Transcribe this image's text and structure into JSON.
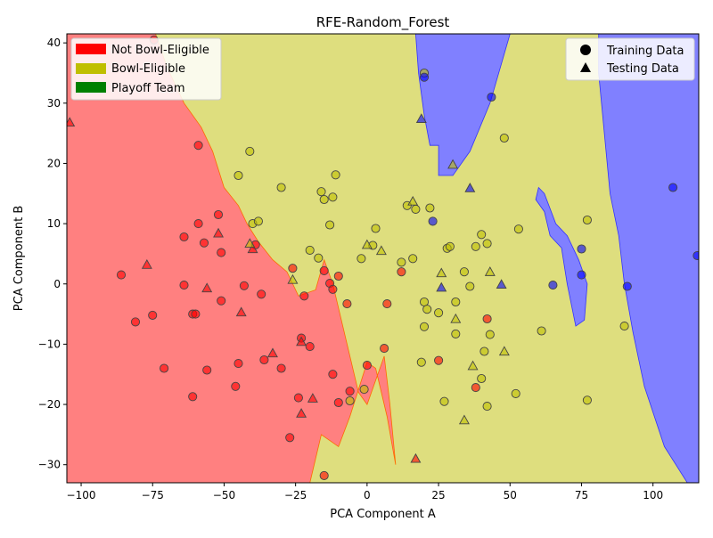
{
  "chart_data": {
    "type": "scatter",
    "title": "RFE-Random_Forest",
    "xlabel": "PCA Component A",
    "ylabel": "PCA Component B",
    "xlim": [
      -105,
      116
    ],
    "ylim": [
      -33,
      41.5
    ],
    "xticks": [
      -100,
      -75,
      -50,
      -25,
      0,
      25,
      50,
      75,
      100
    ],
    "xtick_labels": [
      "−100",
      "−75",
      "−50",
      "−25",
      "0",
      "25",
      "50",
      "75",
      "100"
    ],
    "yticks": [
      -30,
      -20,
      -10,
      0,
      10,
      20,
      30,
      40
    ],
    "ytick_labels": [
      "−30",
      "−20",
      "−10",
      "0",
      "10",
      "20",
      "30",
      "40"
    ],
    "grid": false,
    "class_legend": {
      "placement": "top-left",
      "entries": [
        {
          "label": "Not Bowl-Eligible",
          "color": "#ff0000"
        },
        {
          "label": "Bowl-Eligible",
          "color": "#bfbf00"
        },
        {
          "label": "Playoff Team",
          "color": "#008000"
        }
      ]
    },
    "marker_legend": {
      "placement": "top-right",
      "entries": [
        {
          "label": "Training Data",
          "marker": "circle"
        },
        {
          "label": "Testing Data",
          "marker": "triangle"
        }
      ]
    },
    "region_colors": {
      "red": "#ff8080",
      "yellow": "#dede7e",
      "blue": "#8080ff"
    },
    "point_colors": {
      "red": "#ff0000",
      "yellow": "#bfbf00",
      "blue": "#0000ff"
    },
    "regions": {
      "red": [
        [
          -105,
          41.5
        ],
        [
          -74,
          41.5
        ],
        [
          -70,
          36
        ],
        [
          -64,
          30
        ],
        [
          -58,
          26
        ],
        [
          -54,
          22
        ],
        [
          -50,
          16
        ],
        [
          -45,
          13
        ],
        [
          -42,
          10
        ],
        [
          -38,
          7
        ],
        [
          -33,
          4
        ],
        [
          -28,
          2
        ],
        [
          -24,
          -2
        ],
        [
          -18,
          -1
        ],
        [
          -15,
          4
        ],
        [
          -12,
          0
        ],
        [
          -10,
          -4
        ],
        [
          -6,
          -12
        ],
        [
          -3,
          -18
        ],
        [
          0,
          -20
        ],
        [
          3,
          -16
        ],
        [
          6,
          -12
        ],
        [
          8,
          -20
        ],
        [
          10,
          -30
        ],
        [
          7,
          -22
        ],
        [
          3,
          -14
        ],
        [
          0,
          -13
        ],
        [
          -6,
          -22
        ],
        [
          -10,
          -27
        ],
        [
          -16,
          -25
        ],
        [
          -20,
          -33
        ],
        [
          -105,
          -33
        ]
      ],
      "blue": [
        [
          [
            17,
            41.5
          ],
          [
            50,
            41.5
          ],
          [
            43,
            30
          ],
          [
            36,
            22
          ],
          [
            30,
            18
          ],
          [
            25,
            18
          ],
          [
            25,
            23
          ],
          [
            22,
            23
          ],
          [
            20,
            28
          ],
          [
            18,
            35
          ]
        ],
        [
          [
            59,
            14
          ],
          [
            62,
            12
          ],
          [
            64,
            8
          ],
          [
            68,
            6
          ],
          [
            70,
            0
          ],
          [
            73,
            -7
          ],
          [
            76,
            -6
          ],
          [
            77,
            0
          ],
          [
            74,
            4
          ],
          [
            70,
            8
          ],
          [
            66,
            10
          ],
          [
            62,
            15
          ],
          [
            60,
            16
          ]
        ],
        [
          [
            81,
            41.5
          ],
          [
            116,
            41.5
          ],
          [
            116,
            -33
          ],
          [
            112,
            -33
          ],
          [
            104,
            -27
          ],
          [
            97,
            -17
          ],
          [
            93,
            -8
          ],
          [
            90,
            0
          ],
          [
            88,
            8
          ],
          [
            85,
            15
          ],
          [
            83,
            25
          ],
          [
            81,
            35
          ]
        ]
      ]
    },
    "training": [
      {
        "x": -74.5,
        "y": 40.5,
        "c": "red"
      },
      {
        "x": -59,
        "y": 23,
        "c": "red"
      },
      {
        "x": -59,
        "y": 10,
        "c": "red"
      },
      {
        "x": -57,
        "y": 6.8,
        "c": "red"
      },
      {
        "x": -64,
        "y": 7.8,
        "c": "red"
      },
      {
        "x": -52,
        "y": 11.5,
        "c": "red"
      },
      {
        "x": -51,
        "y": 5.2,
        "c": "red"
      },
      {
        "x": -86,
        "y": 1.5,
        "c": "red"
      },
      {
        "x": -64,
        "y": -0.2,
        "c": "red"
      },
      {
        "x": -61,
        "y": -5,
        "c": "red"
      },
      {
        "x": -60,
        "y": -5,
        "c": "red"
      },
      {
        "x": -51,
        "y": -2.8,
        "c": "red"
      },
      {
        "x": -43,
        "y": -0.3,
        "c": "red"
      },
      {
        "x": -75,
        "y": -5.2,
        "c": "red"
      },
      {
        "x": -81,
        "y": -6.3,
        "c": "red"
      },
      {
        "x": -71,
        "y": -14,
        "c": "red"
      },
      {
        "x": -56,
        "y": -14.3,
        "c": "red"
      },
      {
        "x": -61,
        "y": -18.7,
        "c": "red"
      },
      {
        "x": -45,
        "y": -13.2,
        "c": "red"
      },
      {
        "x": -46,
        "y": -17,
        "c": "red"
      },
      {
        "x": -36,
        "y": -12.6,
        "c": "red"
      },
      {
        "x": -30,
        "y": -14,
        "c": "red"
      },
      {
        "x": -24,
        "y": -18.9,
        "c": "red"
      },
      {
        "x": -22,
        "y": -2,
        "c": "red"
      },
      {
        "x": -23,
        "y": -9,
        "c": "red"
      },
      {
        "x": -20,
        "y": -10.4,
        "c": "red"
      },
      {
        "x": -15,
        "y": 2.2,
        "c": "red"
      },
      {
        "x": -13,
        "y": 0.1,
        "c": "red"
      },
      {
        "x": -12,
        "y": -0.9,
        "c": "red"
      },
      {
        "x": -12,
        "y": -15,
        "c": "red"
      },
      {
        "x": -10,
        "y": -19.7,
        "c": "red"
      },
      {
        "x": -10,
        "y": 1.3,
        "c": "red"
      },
      {
        "x": -7,
        "y": -3.3,
        "c": "red"
      },
      {
        "x": -6,
        "y": -17.8,
        "c": "red"
      },
      {
        "x": 0,
        "y": -13.5,
        "c": "red"
      },
      {
        "x": 6,
        "y": -10.7,
        "c": "red"
      },
      {
        "x": 7,
        "y": -3.3,
        "c": "red"
      },
      {
        "x": 12,
        "y": 2,
        "c": "red"
      },
      {
        "x": -15,
        "y": -31.8,
        "c": "red"
      },
      {
        "x": -27,
        "y": -25.5,
        "c": "red"
      },
      {
        "x": -37,
        "y": -1.7,
        "c": "red"
      },
      {
        "x": -39,
        "y": 6.5,
        "c": "red"
      },
      {
        "x": -26,
        "y": 2.6,
        "c": "red"
      },
      {
        "x": 25,
        "y": -12.7,
        "c": "red"
      },
      {
        "x": 38,
        "y": -17.2,
        "c": "red"
      },
      {
        "x": 42,
        "y": -5.8,
        "c": "red"
      },
      {
        "x": -45,
        "y": 18,
        "c": "yellow"
      },
      {
        "x": -41,
        "y": 22,
        "c": "yellow"
      },
      {
        "x": -40,
        "y": 10,
        "c": "yellow"
      },
      {
        "x": -38,
        "y": 10.4,
        "c": "yellow"
      },
      {
        "x": -30,
        "y": 16,
        "c": "yellow"
      },
      {
        "x": -16,
        "y": 15.3,
        "c": "yellow"
      },
      {
        "x": -15,
        "y": 14,
        "c": "yellow"
      },
      {
        "x": -12,
        "y": 14.4,
        "c": "yellow"
      },
      {
        "x": -11,
        "y": 18.1,
        "c": "yellow"
      },
      {
        "x": -13,
        "y": 9.8,
        "c": "yellow"
      },
      {
        "x": -20,
        "y": 5.6,
        "c": "yellow"
      },
      {
        "x": -17,
        "y": 4.3,
        "c": "yellow"
      },
      {
        "x": -2,
        "y": 4.2,
        "c": "yellow"
      },
      {
        "x": 2,
        "y": 6.4,
        "c": "yellow"
      },
      {
        "x": 3,
        "y": 9.2,
        "c": "yellow"
      },
      {
        "x": 12,
        "y": 3.6,
        "c": "yellow"
      },
      {
        "x": 14,
        "y": 13,
        "c": "yellow"
      },
      {
        "x": 16,
        "y": 4.2,
        "c": "yellow"
      },
      {
        "x": 17,
        "y": 12.4,
        "c": "yellow"
      },
      {
        "x": 20,
        "y": 35,
        "c": "yellow"
      },
      {
        "x": 22,
        "y": 12.6,
        "c": "yellow"
      },
      {
        "x": 20,
        "y": -3,
        "c": "yellow"
      },
      {
        "x": 21,
        "y": -4.2,
        "c": "yellow"
      },
      {
        "x": 20,
        "y": -7.1,
        "c": "yellow"
      },
      {
        "x": 25,
        "y": -4.8,
        "c": "yellow"
      },
      {
        "x": 28,
        "y": 5.9,
        "c": "yellow"
      },
      {
        "x": 29,
        "y": 6.2,
        "c": "yellow"
      },
      {
        "x": 31,
        "y": -3,
        "c": "yellow"
      },
      {
        "x": 31,
        "y": -8.3,
        "c": "yellow"
      },
      {
        "x": 34,
        "y": 2,
        "c": "yellow"
      },
      {
        "x": 36,
        "y": -0.4,
        "c": "yellow"
      },
      {
        "x": 38,
        "y": 6.2,
        "c": "yellow"
      },
      {
        "x": 40,
        "y": 8.2,
        "c": "yellow"
      },
      {
        "x": 42,
        "y": 6.7,
        "c": "yellow"
      },
      {
        "x": 41,
        "y": -11.2,
        "c": "yellow"
      },
      {
        "x": 43,
        "y": -8.4,
        "c": "yellow"
      },
      {
        "x": 40,
        "y": -15.7,
        "c": "yellow"
      },
      {
        "x": 42,
        "y": -20.3,
        "c": "yellow"
      },
      {
        "x": 27,
        "y": -19.5,
        "c": "yellow"
      },
      {
        "x": 19,
        "y": -13,
        "c": "yellow"
      },
      {
        "x": 48,
        "y": 24.2,
        "c": "yellow"
      },
      {
        "x": 53,
        "y": 9.1,
        "c": "yellow"
      },
      {
        "x": 52,
        "y": -18.2,
        "c": "yellow"
      },
      {
        "x": 61,
        "y": -7.8,
        "c": "yellow"
      },
      {
        "x": 77,
        "y": 10.6,
        "c": "yellow"
      },
      {
        "x": 77,
        "y": -19.3,
        "c": "yellow"
      },
      {
        "x": 90,
        "y": -7,
        "c": "yellow"
      },
      {
        "x": -1,
        "y": -17.5,
        "c": "yellow"
      },
      {
        "x": -6,
        "y": -19.4,
        "c": "yellow"
      },
      {
        "x": 20,
        "y": 34.3,
        "c": "blue"
      },
      {
        "x": 23,
        "y": 10.4,
        "c": "blue"
      },
      {
        "x": 43.5,
        "y": 31,
        "c": "blue"
      },
      {
        "x": 65,
        "y": -0.2,
        "c": "blue"
      },
      {
        "x": 75,
        "y": 5.8,
        "c": "blue"
      },
      {
        "x": 75,
        "y": 1.5,
        "c": "blue"
      },
      {
        "x": 91,
        "y": -0.4,
        "c": "blue"
      },
      {
        "x": 107,
        "y": 16,
        "c": "blue"
      },
      {
        "x": 115.5,
        "y": 4.7,
        "c": "blue"
      }
    ],
    "testing": [
      {
        "x": -104,
        "y": 26.8,
        "c": "red"
      },
      {
        "x": -77,
        "y": 3.2,
        "c": "red"
      },
      {
        "x": -56,
        "y": -0.7,
        "c": "red"
      },
      {
        "x": -52,
        "y": 8.4,
        "c": "red"
      },
      {
        "x": -44,
        "y": -4.7,
        "c": "red"
      },
      {
        "x": -40,
        "y": 5.8,
        "c": "red"
      },
      {
        "x": -33,
        "y": -11.5,
        "c": "red"
      },
      {
        "x": -23,
        "y": -9.6,
        "c": "red"
      },
      {
        "x": -23,
        "y": -21.5,
        "c": "red"
      },
      {
        "x": -19,
        "y": -19,
        "c": "red"
      },
      {
        "x": 17,
        "y": -29,
        "c": "red"
      },
      {
        "x": -26,
        "y": 0.7,
        "c": "yellow"
      },
      {
        "x": -41,
        "y": 6.7,
        "c": "yellow"
      },
      {
        "x": 0,
        "y": 6.5,
        "c": "yellow"
      },
      {
        "x": 5,
        "y": 5.5,
        "c": "yellow"
      },
      {
        "x": 16,
        "y": 13.7,
        "c": "yellow"
      },
      {
        "x": 26,
        "y": 1.8,
        "c": "yellow"
      },
      {
        "x": 30,
        "y": 19.8,
        "c": "yellow"
      },
      {
        "x": 31,
        "y": -5.8,
        "c": "yellow"
      },
      {
        "x": 37,
        "y": -13.6,
        "c": "yellow"
      },
      {
        "x": 34,
        "y": -22.6,
        "c": "yellow"
      },
      {
        "x": 43,
        "y": 2,
        "c": "yellow"
      },
      {
        "x": 48,
        "y": -11.2,
        "c": "yellow"
      },
      {
        "x": 19,
        "y": 27.4,
        "c": "blue"
      },
      {
        "x": 26,
        "y": -0.6,
        "c": "blue"
      },
      {
        "x": 36,
        "y": 15.9,
        "c": "blue"
      },
      {
        "x": 47,
        "y": -0.1,
        "c": "blue"
      }
    ]
  }
}
